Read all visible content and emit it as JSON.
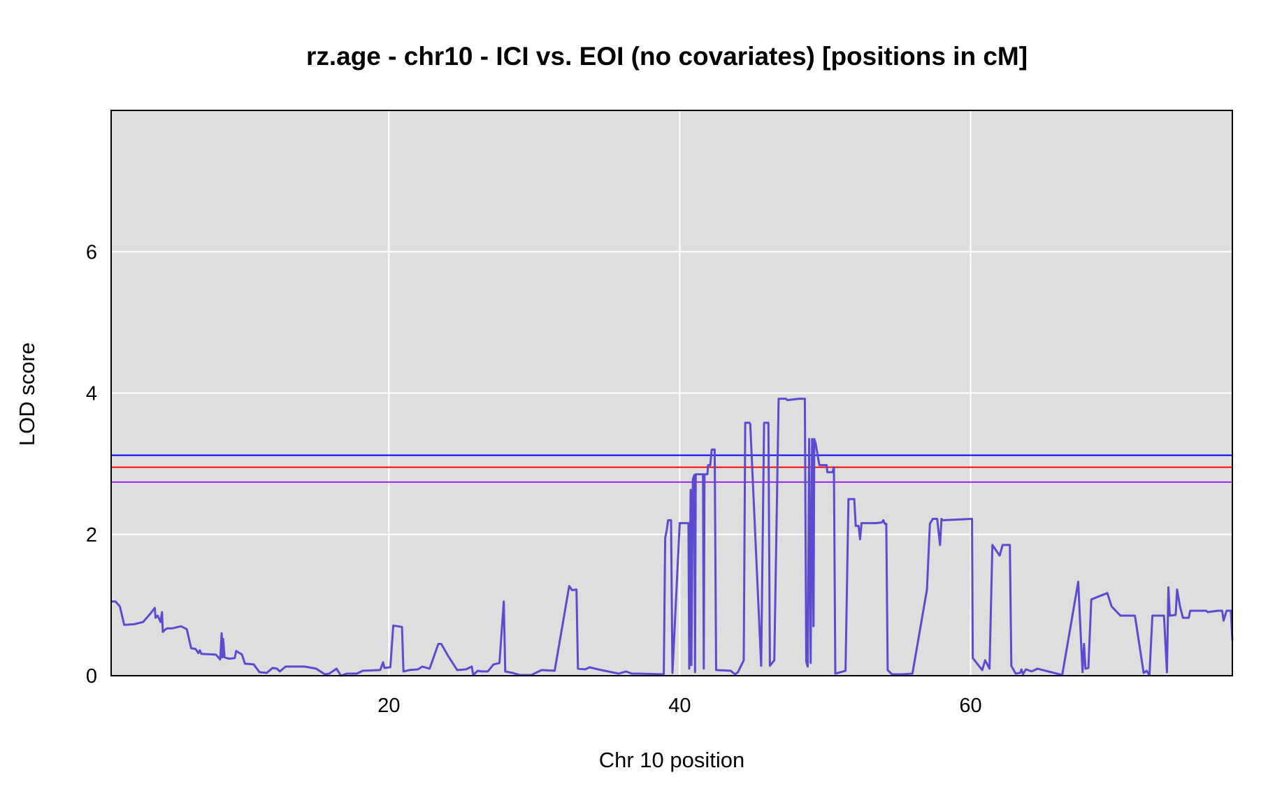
{
  "chart_data": {
    "type": "line",
    "title": "rz.age - chr10 - ICI vs. EOI (no covariates) [positions in cM]",
    "xlabel": "Chr 10 position",
    "ylabel": "LOD score",
    "xlim": [
      0.9,
      78.0
    ],
    "ylim": [
      0,
      8.0
    ],
    "xticks": [
      20,
      40,
      60
    ],
    "yticks": [
      0,
      2,
      4,
      6
    ],
    "grid": true,
    "background": "#dedede",
    "gridcolor": "#ffffff",
    "thresholds": [
      {
        "y": 3.12,
        "color": "#0000ff"
      },
      {
        "y": 2.95,
        "color": "#ff0000"
      },
      {
        "y": 2.74,
        "color": "#a020f0"
      }
    ],
    "series": [
      {
        "color": "#5a4bd1",
        "points": [
          [
            0.9,
            1.05
          ],
          [
            1.2,
            1.05
          ],
          [
            1.5,
            0.98
          ],
          [
            1.8,
            0.72
          ],
          [
            2.5,
            0.73
          ],
          [
            3.1,
            0.76
          ],
          [
            3.6,
            0.88
          ],
          [
            3.9,
            0.96
          ],
          [
            3.95,
            0.82
          ],
          [
            4.1,
            0.85
          ],
          [
            4.3,
            0.76
          ],
          [
            4.4,
            0.9
          ],
          [
            4.45,
            0.62
          ],
          [
            4.6,
            0.65
          ],
          [
            4.75,
            0.67
          ],
          [
            5.1,
            0.67
          ],
          [
            5.7,
            0.7
          ],
          [
            6.1,
            0.66
          ],
          [
            6.4,
            0.39
          ],
          [
            6.7,
            0.38
          ],
          [
            6.9,
            0.32
          ],
          [
            7.0,
            0.36
          ],
          [
            7.1,
            0.31
          ],
          [
            8.1,
            0.3
          ],
          [
            8.4,
            0.23
          ],
          [
            8.5,
            0.6
          ],
          [
            8.55,
            0.26
          ],
          [
            8.6,
            0.52
          ],
          [
            8.7,
            0.26
          ],
          [
            9.0,
            0.24
          ],
          [
            9.4,
            0.25
          ],
          [
            9.5,
            0.35
          ],
          [
            9.9,
            0.3
          ],
          [
            10.1,
            0.17
          ],
          [
            10.7,
            0.16
          ],
          [
            11.1,
            0.05
          ],
          [
            11.6,
            0.04
          ],
          [
            12.0,
            0.11
          ],
          [
            12.3,
            0.1
          ],
          [
            12.5,
            0.06
          ],
          [
            12.9,
            0.13
          ],
          [
            14.2,
            0.13
          ],
          [
            15.0,
            0.1
          ],
          [
            15.6,
            0.02
          ],
          [
            15.9,
            0.03
          ],
          [
            16.4,
            0.1
          ],
          [
            16.7,
            0.0
          ],
          [
            17.1,
            0.03
          ],
          [
            17.8,
            0.03
          ],
          [
            18.2,
            0.07
          ],
          [
            19.4,
            0.08
          ],
          [
            19.6,
            0.19
          ],
          [
            19.7,
            0.11
          ],
          [
            20.1,
            0.12
          ],
          [
            20.3,
            0.71
          ],
          [
            20.9,
            0.69
          ],
          [
            21.0,
            0.06
          ],
          [
            21.4,
            0.08
          ],
          [
            22.0,
            0.09
          ],
          [
            22.3,
            0.13
          ],
          [
            22.8,
            0.1
          ],
          [
            23.4,
            0.45
          ],
          [
            23.6,
            0.45
          ],
          [
            24.1,
            0.27
          ],
          [
            24.7,
            0.08
          ],
          [
            25.3,
            0.09
          ],
          [
            25.7,
            0.13
          ],
          [
            25.8,
            0.01
          ],
          [
            26.1,
            0.07
          ],
          [
            26.4,
            0.06
          ],
          [
            26.8,
            0.06
          ],
          [
            27.2,
            0.16
          ],
          [
            27.6,
            0.18
          ],
          [
            27.9,
            1.05
          ],
          [
            28.0,
            0.06
          ],
          [
            28.5,
            0.04
          ],
          [
            29.0,
            0.01
          ],
          [
            29.8,
            0.01
          ],
          [
            30.5,
            0.08
          ],
          [
            31.4,
            0.07
          ],
          [
            32.4,
            1.27
          ],
          [
            32.6,
            1.21
          ],
          [
            32.9,
            1.22
          ],
          [
            33.0,
            0.1
          ],
          [
            33.5,
            0.09
          ],
          [
            33.8,
            0.12
          ],
          [
            34.6,
            0.08
          ],
          [
            35.8,
            0.03
          ],
          [
            36.3,
            0.06
          ],
          [
            36.7,
            0.03
          ],
          [
            37.2,
            0.03
          ],
          [
            38.9,
            0.02
          ],
          [
            39.0,
            1.95
          ],
          [
            39.1,
            2.05
          ],
          [
            39.2,
            2.2
          ],
          [
            39.4,
            2.2
          ],
          [
            39.5,
            0.04
          ],
          [
            40.0,
            2.16
          ],
          [
            40.6,
            2.16
          ],
          [
            40.65,
            0.1
          ],
          [
            40.75,
            2.63
          ],
          [
            40.8,
            0.15
          ],
          [
            40.9,
            2.78
          ],
          [
            41.0,
            2.84
          ],
          [
            41.05,
            0.05
          ],
          [
            41.1,
            2.85
          ],
          [
            41.6,
            2.85
          ],
          [
            41.65,
            0.1
          ],
          [
            41.7,
            2.85
          ],
          [
            41.9,
            2.85
          ],
          [
            41.95,
            2.98
          ],
          [
            42.1,
            2.98
          ],
          [
            42.2,
            3.2
          ],
          [
            42.4,
            3.2
          ],
          [
            42.5,
            0.08
          ],
          [
            43.5,
            0.07
          ],
          [
            43.8,
            0.02
          ],
          [
            44.0,
            0.05
          ],
          [
            44.4,
            0.22
          ],
          [
            44.5,
            3.58
          ],
          [
            44.8,
            3.58
          ],
          [
            44.85,
            3.56
          ],
          [
            45.6,
            0.14
          ],
          [
            45.8,
            3.58
          ],
          [
            46.1,
            3.58
          ],
          [
            46.2,
            0.14
          ],
          [
            46.5,
            0.22
          ],
          [
            46.8,
            3.92
          ],
          [
            47.3,
            3.92
          ],
          [
            47.4,
            3.9
          ],
          [
            48.2,
            3.92
          ],
          [
            48.6,
            3.92
          ],
          [
            48.7,
            0.2
          ],
          [
            48.8,
            0.13
          ],
          [
            48.9,
            3.35
          ],
          [
            49.0,
            0.18
          ],
          [
            49.1,
            3.35
          ],
          [
            49.2,
            0.7
          ],
          [
            49.25,
            3.35
          ],
          [
            49.35,
            3.28
          ],
          [
            49.5,
            3.1
          ],
          [
            49.6,
            2.98
          ],
          [
            50.1,
            2.98
          ],
          [
            50.15,
            2.88
          ],
          [
            50.5,
            2.88
          ],
          [
            50.6,
            2.95
          ],
          [
            50.7,
            0.03
          ],
          [
            51.4,
            0.07
          ],
          [
            51.6,
            2.5
          ],
          [
            52.0,
            2.5
          ],
          [
            52.1,
            2.12
          ],
          [
            52.3,
            2.12
          ],
          [
            52.4,
            1.93
          ],
          [
            52.5,
            2.16
          ],
          [
            53.5,
            2.16
          ],
          [
            53.9,
            2.17
          ],
          [
            54.0,
            2.2
          ],
          [
            54.1,
            2.15
          ],
          [
            54.2,
            2.15
          ],
          [
            54.3,
            0.08
          ],
          [
            54.6,
            0.02
          ],
          [
            55.3,
            0.02
          ],
          [
            56.0,
            0.03
          ],
          [
            57.0,
            1.22
          ],
          [
            57.2,
            2.15
          ],
          [
            57.4,
            2.22
          ],
          [
            57.7,
            2.22
          ],
          [
            57.9,
            1.85
          ],
          [
            58.0,
            2.22
          ],
          [
            58.1,
            2.2
          ],
          [
            60.1,
            2.22
          ],
          [
            60.15,
            0.25
          ],
          [
            60.8,
            0.08
          ],
          [
            61.0,
            0.22
          ],
          [
            61.3,
            0.1
          ],
          [
            61.5,
            1.85
          ],
          [
            62.0,
            1.7
          ],
          [
            62.2,
            1.85
          ],
          [
            62.7,
            1.85
          ],
          [
            62.8,
            0.14
          ],
          [
            63.1,
            0.03
          ],
          [
            63.4,
            0.04
          ],
          [
            63.5,
            0.09
          ],
          [
            63.6,
            0.02
          ],
          [
            63.8,
            0.09
          ],
          [
            64.2,
            0.06
          ],
          [
            64.6,
            0.1
          ],
          [
            66.3,
            0.01
          ],
          [
            67.4,
            1.33
          ],
          [
            67.6,
            0.47
          ],
          [
            67.7,
            0.05
          ],
          [
            67.8,
            0.45
          ],
          [
            67.9,
            0.1
          ],
          [
            68.1,
            0.11
          ],
          [
            68.3,
            1.08
          ],
          [
            69.4,
            1.17
          ],
          [
            69.7,
            0.98
          ],
          [
            70.3,
            0.85
          ],
          [
            71.3,
            0.85
          ],
          [
            71.9,
            0.04
          ],
          [
            72.1,
            0.07
          ],
          [
            72.3,
            0.01
          ],
          [
            72.5,
            0.85
          ],
          [
            73.3,
            0.85
          ],
          [
            73.5,
            0.05
          ],
          [
            73.6,
            1.25
          ],
          [
            73.7,
            0.85
          ],
          [
            74.1,
            0.86
          ],
          [
            74.2,
            1.22
          ],
          [
            74.4,
            0.98
          ],
          [
            74.6,
            0.82
          ],
          [
            75.0,
            0.82
          ],
          [
            75.1,
            0.92
          ],
          [
            76.2,
            0.92
          ],
          [
            76.3,
            0.9
          ],
          [
            77.0,
            0.92
          ],
          [
            77.3,
            0.92
          ],
          [
            77.4,
            0.78
          ],
          [
            77.6,
            0.92
          ],
          [
            77.9,
            0.92
          ],
          [
            78.0,
            0.5
          ]
        ]
      }
    ]
  }
}
